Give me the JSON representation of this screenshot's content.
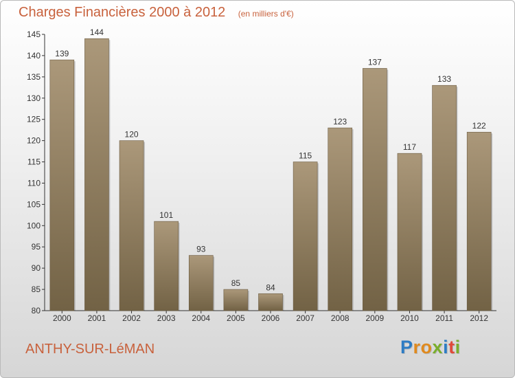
{
  "header": {
    "title": "Charges Financières 2000 à 2012",
    "unit_note": "(en milliers d'€)"
  },
  "footer": {
    "commune": "ANTHY-SUR-LéMAN",
    "logo_text": "Proxiti"
  },
  "colors": {
    "bar_top": "#ab987a",
    "bar_bottom": "#726245",
    "title": "#c8613c",
    "axis": "#333333"
  },
  "chart_data": {
    "type": "bar",
    "title": "Charges Financières 2000 à 2012",
    "subtitle": "(en milliers d'€)",
    "xlabel": "",
    "ylabel": "",
    "categories": [
      "2000",
      "2001",
      "2002",
      "2003",
      "2004",
      "2005",
      "2006",
      "2007",
      "2008",
      "2009",
      "2010",
      "2011",
      "2012"
    ],
    "values": [
      139,
      144,
      120,
      101,
      93,
      85,
      84,
      115,
      123,
      137,
      117,
      133,
      122
    ],
    "ylim": [
      80,
      145
    ],
    "yticks": [
      80,
      85,
      90,
      95,
      100,
      105,
      110,
      115,
      120,
      125,
      130,
      135,
      140,
      145
    ],
    "grid": false,
    "legend": "none"
  }
}
